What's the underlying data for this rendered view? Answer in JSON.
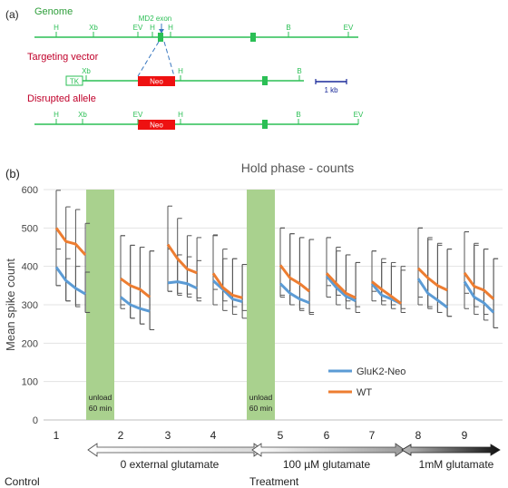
{
  "panel_a": {
    "label": "(a)",
    "rows": [
      {
        "title": "Genome",
        "title_color": "#2e9e3a",
        "sites": [
          "H",
          "Xb",
          "EV",
          "H",
          "H",
          "B",
          "EV"
        ]
      },
      {
        "title": "Targeting vector",
        "title_color": "#c0002a",
        "sites": [
          "Xb",
          "H",
          "B"
        ],
        "tk_label": "TK",
        "neo_label": "Neo"
      },
      {
        "title": "Disrupted allele",
        "title_color": "#c0002a",
        "sites": [
          "H",
          "Xb",
          "EV",
          "H",
          "B",
          "EV"
        ],
        "neo_label": "Neo"
      }
    ],
    "exon_label": "MD2 exon",
    "scale_label": "1 kb",
    "colors": {
      "line": "#2bbf55",
      "neo": "#ee1111",
      "dashed": "#3a78c0",
      "scale": "#1a2a9a"
    }
  },
  "panel_b": {
    "label": "(b)",
    "unload_label_1": "unload",
    "unload_label_2": "60 min",
    "arrow_labels": [
      "0 external glutamate",
      "100 µM glutamate",
      "1mM glutamate"
    ],
    "bottom_labels": [
      "Control",
      "Treatment"
    ]
  },
  "chart_data": {
    "type": "line",
    "title": "Hold phase - counts",
    "xlabel": "",
    "ylabel": "Mean spike count",
    "ylim": [
      0,
      600
    ],
    "yticks": [
      0,
      100,
      200,
      300,
      400,
      500,
      600
    ],
    "x_tick_labels": [
      "1",
      "2",
      "3",
      "4",
      "5",
      "6",
      "7",
      "8",
      "9"
    ],
    "grid": true,
    "legend_position": "bottom-right",
    "unload_after_groups": [
      1,
      4
    ],
    "series": [
      {
        "name": "GluK2-Neo",
        "color": "#5b9bd5",
        "groups": [
          {
            "values": [
              398,
              363,
              343,
              328
            ],
            "err_high": [
              445,
              420,
              400,
              385
            ],
            "err_low": [
              350,
              310,
              295,
              280
            ]
          },
          {
            "values": [
              320,
              300,
              290,
              283
            ],
            "err_high": [
              480,
              455,
              450,
              440
            ],
            "err_low": [
              300,
              265,
              250,
              235
            ]
          },
          {
            "values": [
              357,
              360,
              355,
              343
            ],
            "err_high": [
              445,
              430,
              425,
              415
            ],
            "err_low": [
              335,
              330,
              328,
              318
            ]
          },
          {
            "values": [
              363,
              340,
              315,
              308
            ],
            "err_high": [
              480,
              420,
              420,
              405
            ],
            "err_low": [
              340,
              310,
              295,
              285
            ]
          },
          {
            "values": [
              355,
              330,
              315,
              305
            ],
            "err_high": [
              500,
              485,
              475,
              470
            ],
            "err_low": [
              325,
              300,
              290,
              280
            ]
          },
          {
            "values": [
              375,
              345,
              322,
              310
            ],
            "err_high": [
              475,
              440,
              430,
              410
            ],
            "err_low": [
              350,
              325,
              310,
              295
            ]
          },
          {
            "values": [
              355,
              325,
              315,
              303
            ],
            "err_high": [
              440,
              410,
              400,
              390
            ],
            "err_low": [
              335,
              310,
              300,
              290
            ]
          },
          {
            "values": [
              368,
              330,
              312,
              293
            ],
            "err_high": [
              500,
              475,
              460,
              445
            ],
            "err_low": [
              320,
              295,
              280,
              270
            ]
          },
          {
            "values": [
              360,
              320,
              305,
              280
            ],
            "err_high": [
              490,
              455,
              445,
              420
            ],
            "err_low": [
              330,
              295,
              275,
              240
            ]
          }
        ]
      },
      {
        "name": "WT",
        "color": "#ed7d31",
        "groups": [
          {
            "values": [
              500,
              465,
              458,
              430
            ],
            "err_high": [
              598,
              555,
              548,
              512
            ],
            "err_low": [
              350,
              310,
              300,
              280
            ]
          },
          {
            "values": [
              368,
              350,
              340,
              320
            ],
            "err_high": [
              480,
              455,
              450,
              440
            ],
            "err_low": [
              290,
              265,
              250,
              235
            ]
          },
          {
            "values": [
              457,
              420,
              393,
              383
            ],
            "err_high": [
              557,
              525,
              480,
              475
            ],
            "err_low": [
              335,
              325,
              320,
              310
            ]
          },
          {
            "values": [
              382,
              345,
              325,
              318
            ],
            "err_high": [
              482,
              445,
              420,
              405
            ],
            "err_low": [
              300,
              285,
              275,
              265
            ]
          },
          {
            "values": [
              403,
              370,
              355,
              335
            ],
            "err_high": [
              500,
              485,
              475,
              470
            ],
            "err_low": [
              320,
              300,
              285,
              275
            ]
          },
          {
            "values": [
              382,
              355,
              330,
              318
            ],
            "err_high": [
              475,
              450,
              430,
              410
            ],
            "err_low": [
              320,
              300,
              290,
              280
            ]
          },
          {
            "values": [
              360,
              340,
              322,
              303
            ],
            "err_high": [
              440,
              420,
              410,
              400
            ],
            "err_low": [
              310,
              300,
              290,
              280
            ]
          },
          {
            "values": [
              395,
              370,
              350,
              338
            ],
            "err_high": [
              500,
              470,
              455,
              445
            ],
            "err_low": [
              300,
              290,
              280,
              270
            ]
          },
          {
            "values": [
              383,
              348,
              338,
              315
            ],
            "err_high": [
              490,
              460,
              445,
              420
            ],
            "err_low": [
              290,
              275,
              260,
              240
            ]
          }
        ]
      }
    ]
  }
}
